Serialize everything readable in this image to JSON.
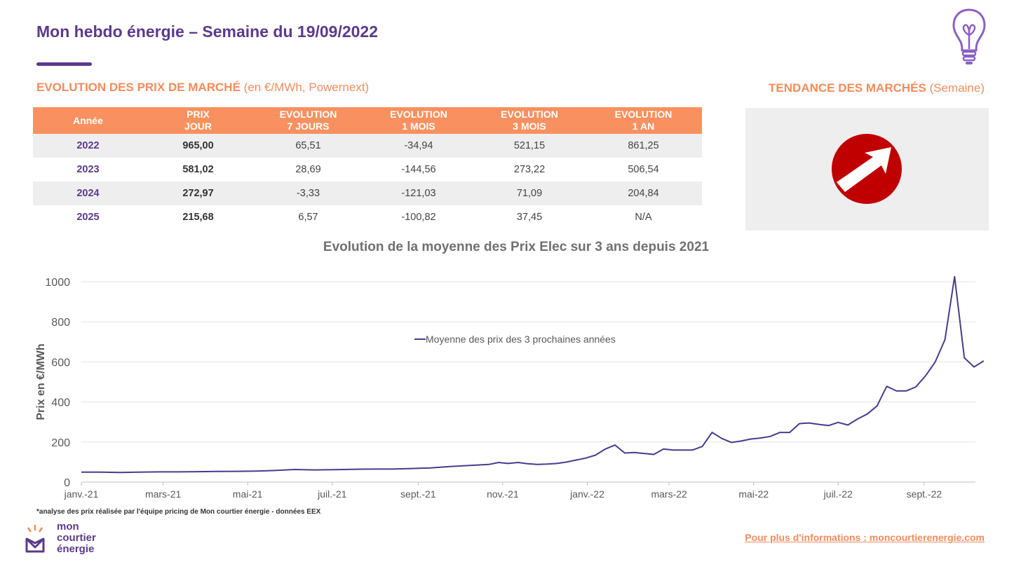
{
  "header": {
    "title": "Mon hebdo énergie – Semaine du 19/09/2022"
  },
  "market_prices": {
    "section_title": "EVOLUTION DES PRIX DE MARCHÉ",
    "section_subtitle": "(en €/MWh, Powernext)",
    "columns": [
      {
        "line1": "Année",
        "line2": ""
      },
      {
        "line1": "PRIX",
        "line2": "JOUR"
      },
      {
        "line1": "EVOLUTION",
        "line2": "7 JOURS"
      },
      {
        "line1": "EVOLUTION",
        "line2": "1 MOIS"
      },
      {
        "line1": "EVOLUTION",
        "line2": "3 MOIS"
      },
      {
        "line1": "EVOLUTION",
        "line2": "1 AN"
      }
    ],
    "rows": [
      [
        "2022",
        "965,00",
        "65,51",
        "-34,94",
        "521,15",
        "861,25"
      ],
      [
        "2023",
        "581,02",
        "28,69",
        "-144,56",
        "273,22",
        "506,54"
      ],
      [
        "2024",
        "272,97",
        "-3,33",
        "-121,03",
        "71,09",
        "204,84"
      ],
      [
        "2025",
        "215,68",
        "6,57",
        "-100,82",
        "37,45",
        "N/A"
      ]
    ]
  },
  "trend": {
    "section_title": "TENDANCE DES MARCHÉS",
    "section_subtitle": "(Semaine)",
    "direction": "up",
    "icon": "trend-up-arrow-icon",
    "color": "#c00000"
  },
  "chart_data": {
    "type": "line",
    "title": "Evolution de la moyenne des Prix Elec sur 3 ans depuis 2021",
    "xlabel": "",
    "ylabel": "Prix en €/MWh",
    "ylim": [
      0,
      1000
    ],
    "yticks": [
      0,
      200,
      400,
      600,
      800,
      1000
    ],
    "grid": true,
    "legend": "top-center",
    "x_range": [
      "2021-01-01",
      "2022-10-08"
    ],
    "x_tick_labels": [
      {
        "date": "2021-01-01",
        "label": "janv.-21"
      },
      {
        "date": "2021-03-01",
        "label": "mars-21"
      },
      {
        "date": "2021-05-01",
        "label": "mai-21"
      },
      {
        "date": "2021-07-01",
        "label": "juil.-21"
      },
      {
        "date": "2021-09-01",
        "label": "sept.-21"
      },
      {
        "date": "2021-11-01",
        "label": "nov.-21"
      },
      {
        "date": "2022-01-01",
        "label": "janv.-22"
      },
      {
        "date": "2022-03-01",
        "label": "mars-22"
      },
      {
        "date": "2022-05-01",
        "label": "mai-22"
      },
      {
        "date": "2022-07-01",
        "label": "juil.-22"
      },
      {
        "date": "2022-09-01",
        "label": "sept.-22"
      }
    ],
    "series": [
      {
        "name": "Moyenne des prix des 3 prochaines années",
        "color": "#4b3a8c",
        "points": [
          [
            "2021-01-01",
            50
          ],
          [
            "2021-01-15",
            50
          ],
          [
            "2021-01-29",
            48
          ],
          [
            "2021-02-12",
            50
          ],
          [
            "2021-02-26",
            51
          ],
          [
            "2021-03-12",
            51
          ],
          [
            "2021-03-26",
            52
          ],
          [
            "2021-04-09",
            53
          ],
          [
            "2021-04-23",
            54
          ],
          [
            "2021-05-07",
            55
          ],
          [
            "2021-05-21",
            58
          ],
          [
            "2021-06-04",
            63
          ],
          [
            "2021-06-18",
            61
          ],
          [
            "2021-07-02",
            62
          ],
          [
            "2021-07-16",
            64
          ],
          [
            "2021-07-30",
            65
          ],
          [
            "2021-08-13",
            65
          ],
          [
            "2021-08-27",
            68
          ],
          [
            "2021-09-10",
            71
          ],
          [
            "2021-09-24",
            78
          ],
          [
            "2021-10-08",
            83
          ],
          [
            "2021-10-22",
            88
          ],
          [
            "2021-10-29",
            98
          ],
          [
            "2021-11-05",
            93
          ],
          [
            "2021-11-12",
            98
          ],
          [
            "2021-11-19",
            92
          ],
          [
            "2021-11-26",
            88
          ],
          [
            "2021-12-03",
            90
          ],
          [
            "2021-12-10",
            93
          ],
          [
            "2021-12-17",
            100
          ],
          [
            "2021-12-24",
            110
          ],
          [
            "2021-12-31",
            120
          ],
          [
            "2022-01-07",
            135
          ],
          [
            "2022-01-14",
            165
          ],
          [
            "2022-01-21",
            185
          ],
          [
            "2022-01-28",
            145
          ],
          [
            "2022-02-04",
            148
          ],
          [
            "2022-02-11",
            143
          ],
          [
            "2022-02-18",
            138
          ],
          [
            "2022-02-25",
            165
          ],
          [
            "2022-03-04",
            160
          ],
          [
            "2022-03-11",
            160
          ],
          [
            "2022-03-18",
            160
          ],
          [
            "2022-03-25",
            178
          ],
          [
            "2022-04-01",
            248
          ],
          [
            "2022-04-08",
            218
          ],
          [
            "2022-04-15",
            198
          ],
          [
            "2022-04-22",
            205
          ],
          [
            "2022-04-29",
            215
          ],
          [
            "2022-05-06",
            220
          ],
          [
            "2022-05-13",
            228
          ],
          [
            "2022-05-20",
            248
          ],
          [
            "2022-05-27",
            248
          ],
          [
            "2022-06-03",
            292
          ],
          [
            "2022-06-10",
            295
          ],
          [
            "2022-06-17",
            288
          ],
          [
            "2022-06-24",
            282
          ],
          [
            "2022-07-01",
            298
          ],
          [
            "2022-07-08",
            285
          ],
          [
            "2022-07-15",
            315
          ],
          [
            "2022-07-22",
            340
          ],
          [
            "2022-07-29",
            380
          ],
          [
            "2022-08-05",
            478
          ],
          [
            "2022-08-12",
            455
          ],
          [
            "2022-08-19",
            455
          ],
          [
            "2022-08-26",
            475
          ],
          [
            "2022-09-02",
            530
          ],
          [
            "2022-09-09",
            600
          ],
          [
            "2022-09-16",
            710
          ],
          [
            "2022-09-23",
            1025
          ],
          [
            "2022-09-30",
            620
          ],
          [
            "2022-10-07",
            575
          ],
          [
            "2022-10-14",
            605
          ]
        ]
      }
    ]
  },
  "footer": {
    "footnote": "*analyse des prix réalisée par l'équipe pricing de Mon courtier énergie -  données EEX",
    "brand_line1": "mon",
    "brand_line2": "courtier",
    "brand_line3": "énergie",
    "more_info": "Pour plus d'informations : moncourtierenergie.com"
  }
}
